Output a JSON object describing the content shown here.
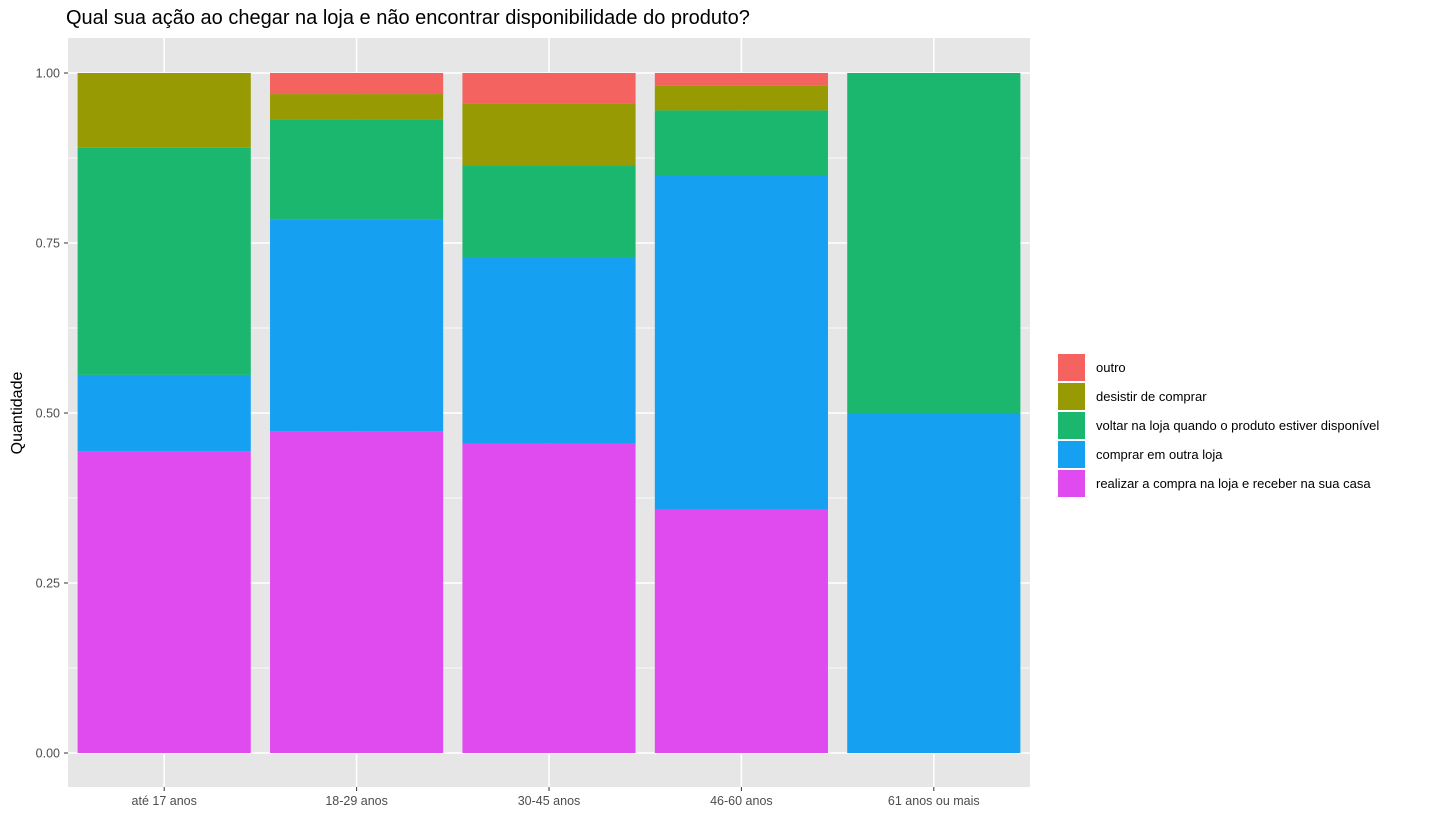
{
  "chart_data": {
    "type": "bar",
    "stacked": true,
    "title": "Qual sua ação ao chegar na loja e não encontrar disponibilidade do produto?",
    "xlabel": "",
    "ylabel": "Quantidade",
    "ylim": [
      0,
      1.05
    ],
    "yticks": [
      "0.00",
      "0.25",
      "0.50",
      "0.75",
      "1.00"
    ],
    "ytick_values": [
      0,
      0.25,
      0.5,
      0.75,
      1.0
    ],
    "grid": true,
    "legend_position": "right",
    "categories": [
      "até 17 anos",
      "18-29 anos",
      "30-45 anos",
      "46-60 anos",
      "61 anos ou mais"
    ],
    "series": [
      {
        "name": "realizar a compra na loja e receber na sua casa",
        "color": "#E04BEF",
        "values": [
          0.444,
          0.473,
          0.455,
          0.358,
          0.0
        ]
      },
      {
        "name": "comprar em outra loja",
        "color": "#16A0F2",
        "values": [
          0.112,
          0.311,
          0.273,
          0.492,
          0.5
        ]
      },
      {
        "name": "voltar na loja quando o produto estiver disponível",
        "color": "#1BB76F",
        "values": [
          0.334,
          0.147,
          0.136,
          0.095,
          0.5
        ]
      },
      {
        "name": "desistir de comprar",
        "color": "#979A02",
        "values": [
          0.11,
          0.038,
          0.091,
          0.036,
          0.0
        ]
      },
      {
        "name": "outro",
        "color": "#F46360",
        "values": [
          0.0,
          0.031,
          0.045,
          0.019,
          0.0
        ]
      }
    ],
    "legend_order": [
      "outro",
      "desistir de comprar",
      "voltar na loja quando o produto estiver disponível",
      "comprar em outra loja",
      "realizar a compra na loja e receber na sua casa"
    ]
  },
  "colors": {
    "panel_background": "#E6E6E6",
    "grid_major": "#FFFFFF",
    "tick_text": "#4D4D4D"
  }
}
